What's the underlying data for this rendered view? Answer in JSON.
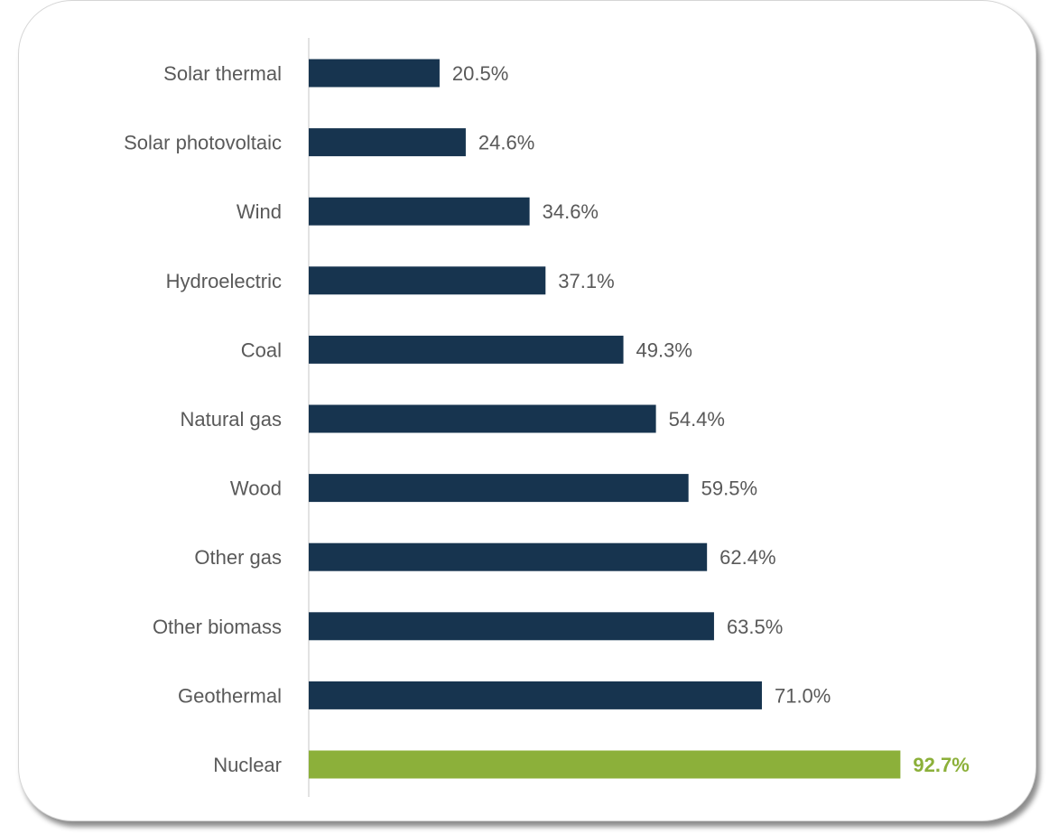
{
  "chart_data": {
    "type": "bar",
    "orientation": "horizontal",
    "categories": [
      "Solar thermal",
      "Solar photovoltaic",
      "Wind",
      "Hydroelectric",
      "Coal",
      "Natural gas",
      "Wood",
      "Other gas",
      "Other biomass",
      "Geothermal",
      "Nuclear"
    ],
    "values": [
      20.5,
      24.6,
      34.6,
      37.1,
      49.3,
      54.4,
      59.5,
      62.4,
      63.5,
      71.0,
      92.7
    ],
    "value_labels": [
      "20.5%",
      "24.6%",
      "34.6%",
      "37.1%",
      "49.3%",
      "54.4%",
      "59.5%",
      "62.4%",
      "63.5%",
      "71.0%",
      "92.7%"
    ],
    "highlight_index": 10,
    "bar_color": "#17344f",
    "highlight_color": "#8cb03a",
    "xlim": [
      0,
      100
    ],
    "grid": false,
    "legend": "none"
  }
}
